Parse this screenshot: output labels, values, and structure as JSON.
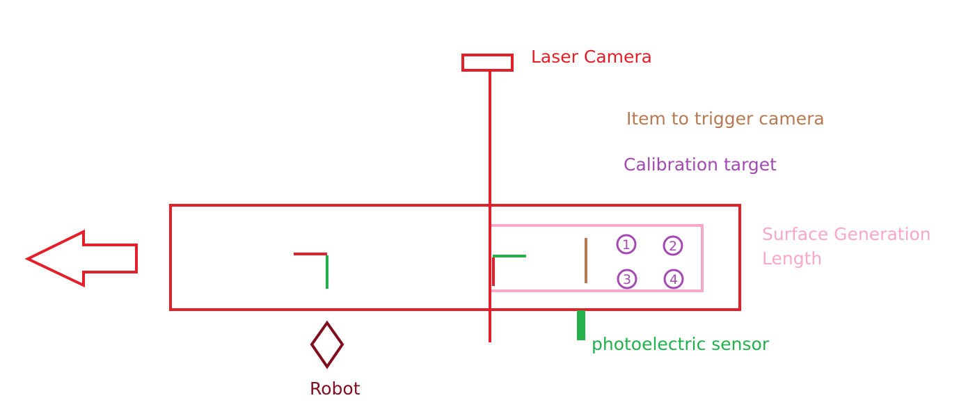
{
  "labels": {
    "laser_camera": "Laser Camera",
    "trigger_item": "Item to trigger camera",
    "calibration_target": "Calibration target",
    "surface_line1": "Surface Generation",
    "surface_line2": "Length",
    "photoelectric_sensor": "photoelectric sensor",
    "robot": "Robot"
  },
  "targets": [
    "1",
    "2",
    "3",
    "4"
  ],
  "colors": {
    "red": "#e3202a",
    "brown": "#b57a53",
    "purple": "#a24ab1",
    "pink": "#f7a8c8",
    "green": "#22b14c",
    "dark_red": "#7f0f1f"
  },
  "icons": {
    "direction_arrow": "left-arrow-icon",
    "robot": "diamond-icon"
  }
}
